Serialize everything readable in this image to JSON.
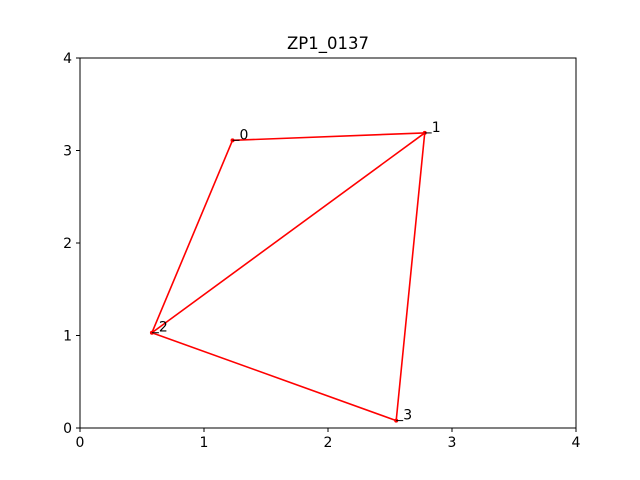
{
  "chart_data": {
    "type": "line",
    "title": "ZP1_0137",
    "xlabel": "",
    "ylabel": "",
    "xlim": [
      0,
      4
    ],
    "ylim": [
      0,
      4
    ],
    "xticks": [
      "0",
      "1",
      "2",
      "3",
      "4"
    ],
    "yticks": [
      "0",
      "1",
      "2",
      "3",
      "4"
    ],
    "grid": false,
    "line_color": "#ff0000",
    "nodes": [
      {
        "label": "0",
        "x": 1.23,
        "y": 3.11
      },
      {
        "label": "1",
        "x": 2.78,
        "y": 3.19
      },
      {
        "label": "2",
        "x": 0.58,
        "y": 1.03
      },
      {
        "label": "3",
        "x": 2.55,
        "y": 0.08
      }
    ],
    "edges": [
      [
        0,
        1
      ],
      [
        1,
        2
      ],
      [
        2,
        0
      ],
      [
        1,
        3
      ],
      [
        3,
        2
      ]
    ]
  }
}
